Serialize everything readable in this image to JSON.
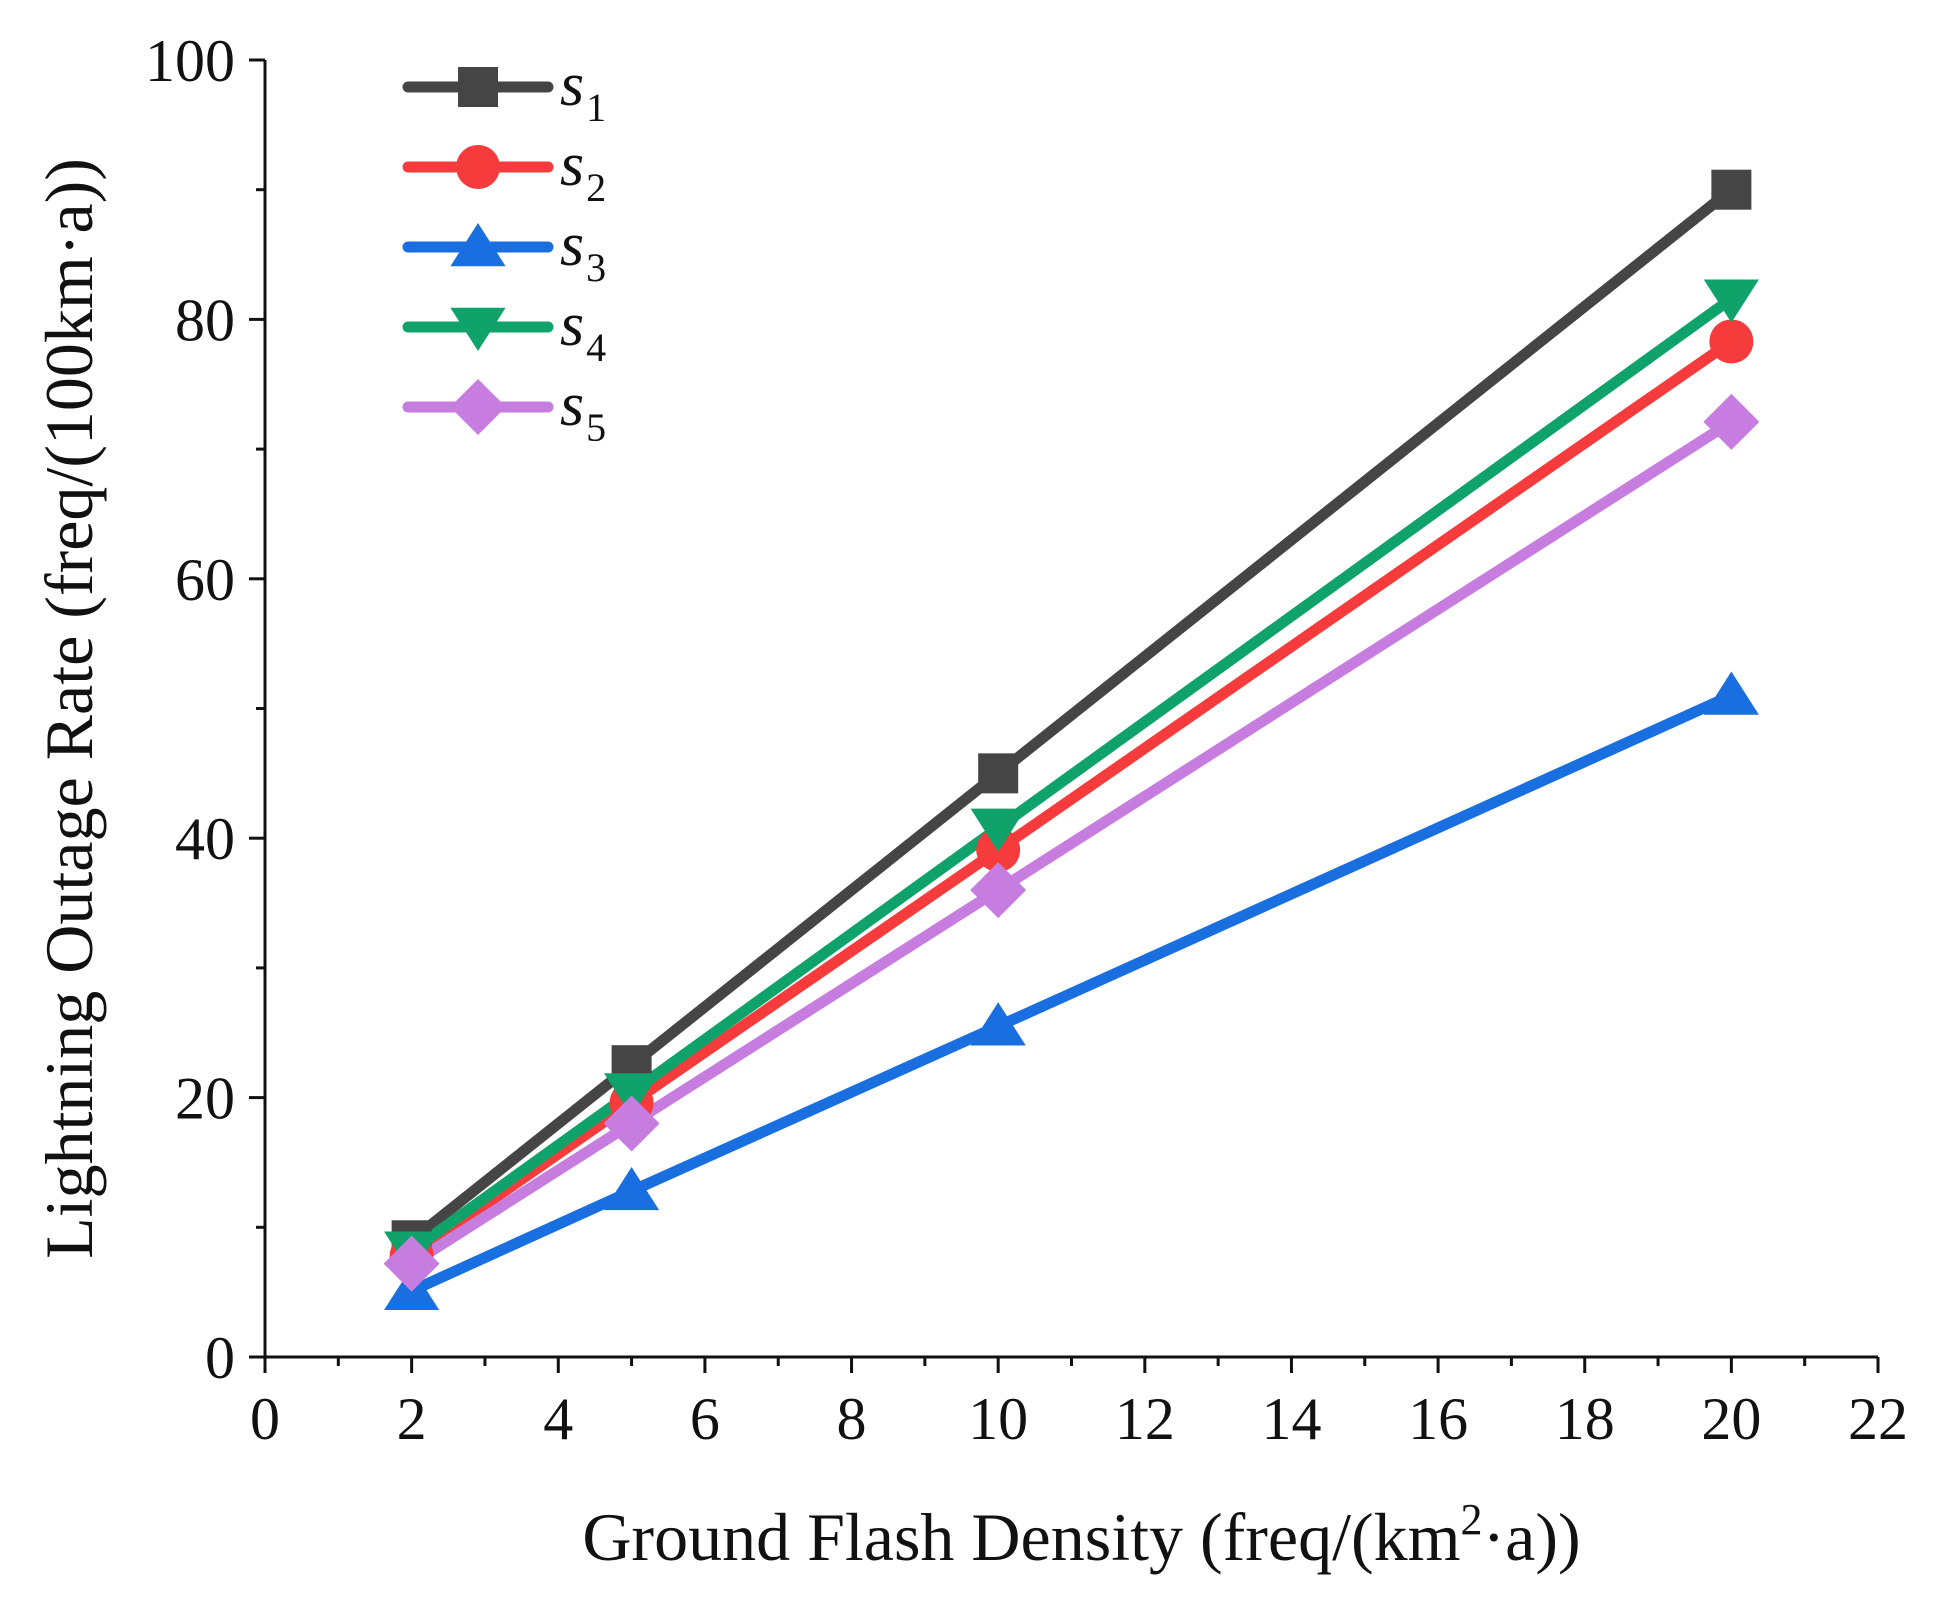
{
  "chart_data": {
    "type": "line",
    "title": "",
    "xlabel": "Ground Flash Density (freq/(km²·a))",
    "xlabel_parts": {
      "pre": "Ground Flash Density (freq/(km",
      "sup": "2",
      "post": "·a))"
    },
    "ylabel": "Lightning Outage Rate (freq/(100km·a))",
    "xlim": [
      0,
      22
    ],
    "ylim": [
      0,
      100
    ],
    "x_ticks": [
      0,
      2,
      4,
      6,
      8,
      10,
      12,
      14,
      16,
      18,
      20,
      22
    ],
    "y_ticks": [
      0,
      20,
      40,
      60,
      80,
      100
    ],
    "grid": false,
    "legend_position": "top-left",
    "x": [
      2,
      5,
      10,
      20
    ],
    "series": [
      {
        "name": "s1",
        "base": "s",
        "sub": "1",
        "values": [
          9.0,
          22.5,
          45.0,
          90.0
        ],
        "color": "#454545",
        "marker": "square"
      },
      {
        "name": "s2",
        "base": "s",
        "sub": "2",
        "values": [
          7.8,
          19.6,
          39.1,
          78.3
        ],
        "color": "#f53b3b",
        "marker": "circle"
      },
      {
        "name": "s3",
        "base": "s",
        "sub": "3",
        "values": [
          5.1,
          12.8,
          25.5,
          51.0
        ],
        "color": "#1a6fe0",
        "marker": "triangle-up"
      },
      {
        "name": "s4",
        "base": "s",
        "sub": "4",
        "values": [
          8.2,
          20.4,
          40.8,
          81.6
        ],
        "color": "#0fa36b",
        "marker": "triangle-down"
      },
      {
        "name": "s5",
        "base": "s",
        "sub": "5",
        "values": [
          7.2,
          18.0,
          36.0,
          72.1
        ],
        "color": "#c77ddf",
        "marker": "diamond"
      }
    ]
  }
}
